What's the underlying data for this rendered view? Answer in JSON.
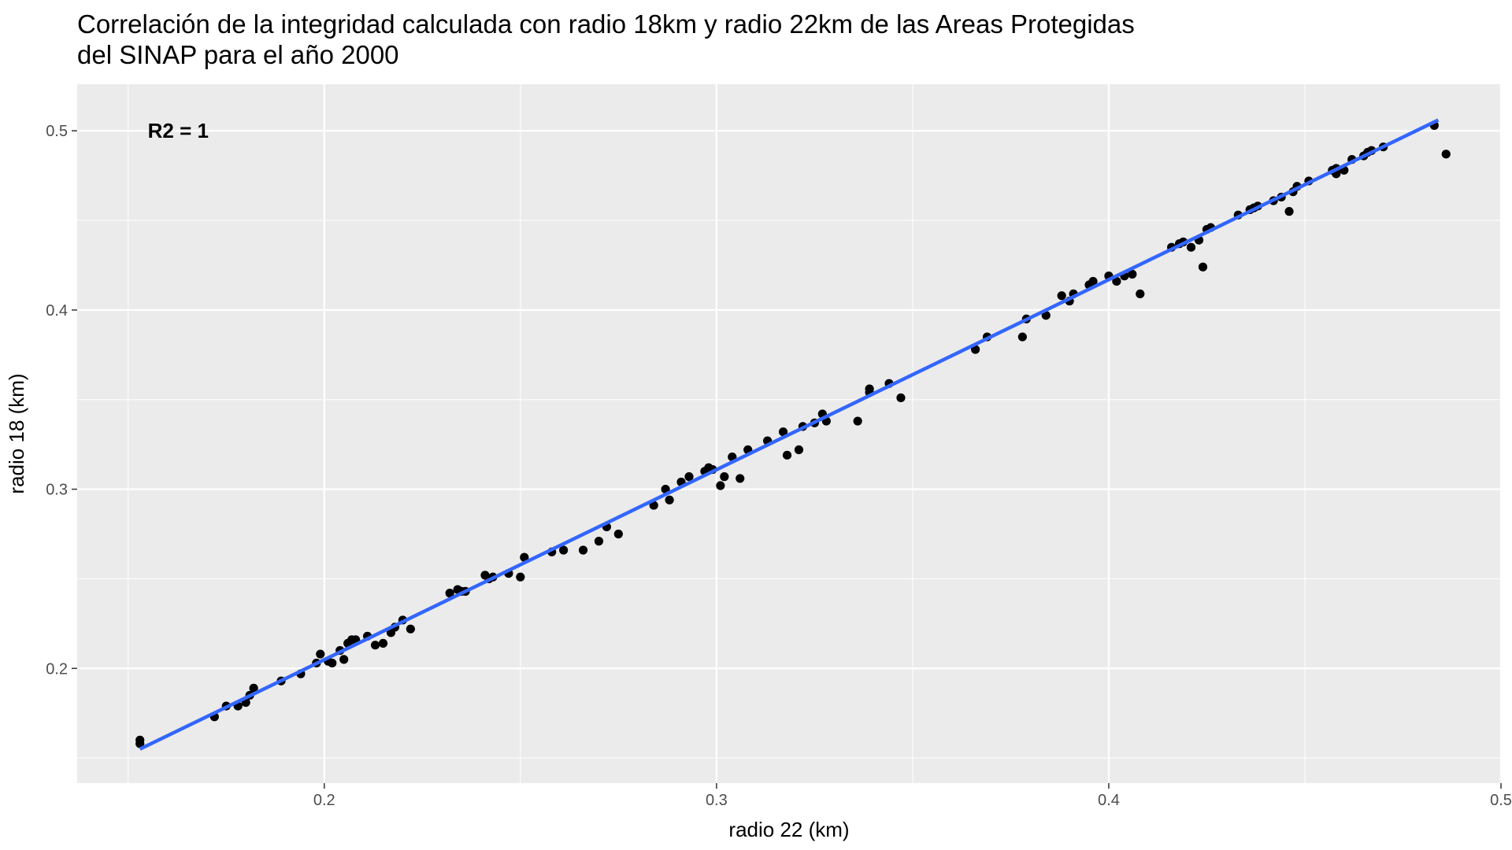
{
  "chart_data": {
    "type": "scatter",
    "title_lines": [
      "Correlación de la integridad calculada con radio 18km y radio 22km de las Areas Protegidas",
      "del SINAP para el año 2000"
    ],
    "xlabel": "radio 22 (km)",
    "ylabel": "radio 18 (km)",
    "xlim": [
      0.137,
      0.5
    ],
    "ylim": [
      0.136,
      0.526
    ],
    "x_ticks": [
      0.2,
      0.3,
      0.4,
      0.5
    ],
    "x_tick_labels": [
      "0.2",
      "0.3",
      "0.4",
      "0.5"
    ],
    "y_ticks": [
      0.2,
      0.3,
      0.4,
      0.5
    ],
    "y_tick_labels": [
      "0.2",
      "0.3",
      "0.4",
      "0.5"
    ],
    "grid": true,
    "annotation": {
      "text": "R2 = 1",
      "x": 0.155,
      "y": 0.5
    },
    "fit_line": {
      "x": [
        0.153,
        0.484
      ],
      "y": [
        0.155,
        0.506
      ],
      "color": "#3366ff"
    },
    "point_color": "#000000",
    "panel_background": "#ebebeb",
    "points": {
      "x": [
        0.153,
        0.153,
        0.172,
        0.175,
        0.178,
        0.18,
        0.181,
        0.182,
        0.189,
        0.194,
        0.198,
        0.199,
        0.201,
        0.202,
        0.204,
        0.205,
        0.206,
        0.207,
        0.208,
        0.211,
        0.213,
        0.215,
        0.217,
        0.218,
        0.22,
        0.222,
        0.232,
        0.234,
        0.235,
        0.236,
        0.241,
        0.242,
        0.243,
        0.247,
        0.25,
        0.251,
        0.258,
        0.261,
        0.266,
        0.27,
        0.272,
        0.275,
        0.284,
        0.287,
        0.288,
        0.291,
        0.293,
        0.297,
        0.298,
        0.299,
        0.301,
        0.302,
        0.304,
        0.306,
        0.308,
        0.313,
        0.317,
        0.318,
        0.321,
        0.322,
        0.325,
        0.327,
        0.328,
        0.336,
        0.339,
        0.339,
        0.344,
        0.347,
        0.366,
        0.369,
        0.378,
        0.379,
        0.384,
        0.388,
        0.39,
        0.391,
        0.395,
        0.396,
        0.4,
        0.402,
        0.404,
        0.406,
        0.408,
        0.416,
        0.418,
        0.419,
        0.421,
        0.423,
        0.424,
        0.425,
        0.426,
        0.433,
        0.436,
        0.437,
        0.438,
        0.442,
        0.444,
        0.446,
        0.447,
        0.448,
        0.451,
        0.457,
        0.458,
        0.458,
        0.46,
        0.462,
        0.465,
        0.466,
        0.467,
        0.47,
        0.483,
        0.486
      ],
      "y": [
        0.16,
        0.158,
        0.173,
        0.179,
        0.179,
        0.181,
        0.185,
        0.189,
        0.193,
        0.197,
        0.203,
        0.208,
        0.204,
        0.203,
        0.21,
        0.205,
        0.214,
        0.216,
        0.216,
        0.218,
        0.213,
        0.214,
        0.22,
        0.223,
        0.227,
        0.222,
        0.242,
        0.244,
        0.243,
        0.243,
        0.252,
        0.25,
        0.251,
        0.253,
        0.251,
        0.262,
        0.265,
        0.266,
        0.266,
        0.271,
        0.279,
        0.275,
        0.291,
        0.3,
        0.294,
        0.304,
        0.307,
        0.31,
        0.312,
        0.311,
        0.302,
        0.307,
        0.318,
        0.306,
        0.322,
        0.327,
        0.332,
        0.319,
        0.322,
        0.335,
        0.337,
        0.342,
        0.338,
        0.338,
        0.356,
        0.354,
        0.359,
        0.351,
        0.378,
        0.385,
        0.385,
        0.395,
        0.397,
        0.408,
        0.405,
        0.409,
        0.414,
        0.416,
        0.419,
        0.416,
        0.419,
        0.42,
        0.409,
        0.435,
        0.437,
        0.438,
        0.435,
        0.439,
        0.424,
        0.445,
        0.446,
        0.453,
        0.456,
        0.457,
        0.458,
        0.461,
        0.463,
        0.455,
        0.466,
        0.469,
        0.472,
        0.478,
        0.476,
        0.479,
        0.478,
        0.484,
        0.486,
        0.488,
        0.489,
        0.491,
        0.503,
        0.487
      ]
    }
  }
}
